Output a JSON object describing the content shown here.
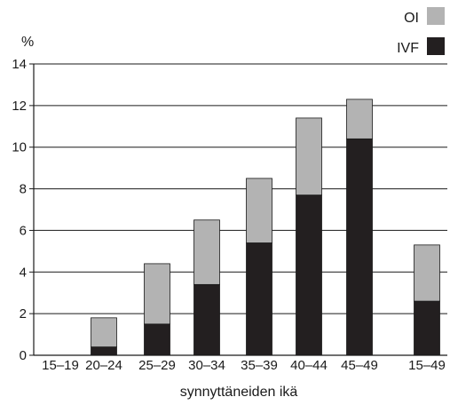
{
  "chart_data": {
    "type": "bar",
    "stacked": true,
    "categories": [
      "15–19",
      "20–24",
      "25–29",
      "30–34",
      "35–39",
      "40–44",
      "45–49",
      "15–49"
    ],
    "series": [
      {
        "name": "IVF",
        "color": "#231f20",
        "values": [
          0,
          0.4,
          1.5,
          3.4,
          5.4,
          7.7,
          10.4,
          2.6
        ]
      },
      {
        "name": "OI",
        "color": "#b3b3b3",
        "values": [
          0,
          1.4,
          2.9,
          3.1,
          3.1,
          3.7,
          1.9,
          2.7
        ]
      }
    ],
    "xlabel": "synnyttäneiden ikä",
    "ylabel": "%",
    "ylim": [
      0,
      14
    ],
    "yticks": [
      0,
      2,
      4,
      6,
      8,
      10,
      12,
      14
    ],
    "grid": true,
    "legend": "top-right"
  }
}
